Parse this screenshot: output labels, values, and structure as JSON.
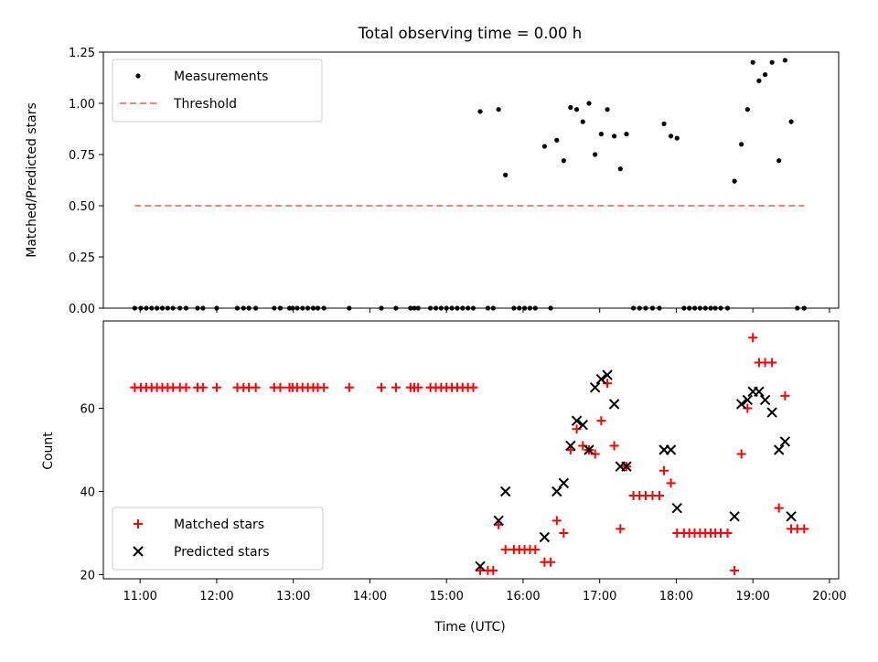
{
  "chart_data": {
    "title": "Total observing time = 0.00 h",
    "xlabel": "Time (UTC)",
    "x_ticks": [
      "11:00",
      "12:00",
      "13:00",
      "14:00",
      "15:00",
      "16:00",
      "17:00",
      "18:00",
      "19:00",
      "20:00"
    ],
    "x_tick_values": [
      11,
      12,
      13,
      14,
      15,
      16,
      17,
      18,
      19,
      20
    ],
    "xlim": [
      10.52,
      20.12
    ],
    "panels": [
      {
        "type": "scatter",
        "ylabel": "Matched/Predicted stars",
        "ylim": [
          0,
          1.25
        ],
        "y_ticks": [
          "0.00",
          "0.25",
          "0.50",
          "0.75",
          "1.00",
          "1.25"
        ],
        "y_tick_values": [
          0,
          0.25,
          0.5,
          0.75,
          1.0,
          1.25
        ],
        "legend": {
          "position": "top-left",
          "entries": [
            "Measurements",
            "Threshold"
          ]
        },
        "series": [
          {
            "name": "Measurements",
            "marker": "dot",
            "color": "#000000",
            "x": [
              10.93,
              11.01,
              11.08,
              11.15,
              11.22,
              11.29,
              11.36,
              11.43,
              11.52,
              11.6,
              11.75,
              11.82,
              12.0,
              12.27,
              12.35,
              12.42,
              12.51,
              12.75,
              12.83,
              12.95,
              12.99,
              13.05,
              13.12,
              13.19,
              13.26,
              13.32,
              13.4,
              13.73,
              14.15,
              14.34,
              14.53,
              14.58,
              14.63,
              14.79,
              14.86,
              14.93,
              15.0,
              15.07,
              15.14,
              15.21,
              15.28,
              15.35,
              15.44,
              15.54,
              15.61,
              15.68,
              15.77,
              15.88,
              15.95,
              16.02,
              16.09,
              16.16,
              16.28,
              16.36,
              16.44,
              16.53,
              16.62,
              16.7,
              16.78,
              16.86,
              16.94,
              17.02,
              17.1,
              17.19,
              17.27,
              17.35,
              17.44,
              17.52,
              17.6,
              17.69,
              17.78,
              17.84,
              17.93,
              18.01,
              18.1,
              18.17,
              18.24,
              18.31,
              18.38,
              18.45,
              18.51,
              18.58,
              18.67,
              18.76,
              18.85,
              18.93,
              19.0,
              19.08,
              19.16,
              19.25,
              19.34,
              19.42,
              19.5,
              19.58,
              19.67
            ],
            "y": [
              0,
              0,
              0,
              0,
              0,
              0,
              0,
              0,
              0,
              0,
              0,
              0,
              0,
              0,
              0,
              0,
              0,
              0,
              0,
              0,
              0,
              0,
              0,
              0,
              0,
              0,
              0,
              0,
              0,
              0,
              0,
              0,
              0,
              0,
              0,
              0,
              0,
              0,
              0,
              0,
              0,
              0,
              0.96,
              0,
              0,
              0.97,
              0.65,
              0,
              0,
              0,
              0,
              0,
              0.79,
              0,
              0.82,
              0.72,
              0.98,
              0.97,
              0.91,
              1.0,
              0.75,
              0.85,
              0.97,
              0.84,
              0.68,
              0.85,
              0,
              0,
              0,
              0,
              0,
              0.9,
              0.84,
              0.83,
              0,
              0,
              0,
              0,
              0,
              0,
              0,
              0,
              0,
              0.62,
              0.8,
              0.97,
              1.2,
              1.11,
              1.14,
              1.2,
              0.72,
              1.21,
              0.91,
              0,
              0
            ]
          },
          {
            "name": "Threshold",
            "type": "line",
            "style": "dashed",
            "color": "#ff7f7f",
            "x": [
              10.93,
              19.67
            ],
            "y": [
              0.5,
              0.5
            ]
          }
        ]
      },
      {
        "type": "scatter",
        "ylabel": "Count",
        "ylim": [
          19,
          81
        ],
        "y_ticks": [
          "20",
          "40",
          "60"
        ],
        "y_tick_values": [
          20,
          40,
          60
        ],
        "legend": {
          "position": "bottom-left",
          "entries": [
            "Matched stars",
            "Predicted stars"
          ]
        },
        "series": [
          {
            "name": "Matched stars",
            "marker": "plus",
            "color": "#ff0000",
            "x": [
              10.93,
              11.01,
              11.08,
              11.15,
              11.22,
              11.29,
              11.36,
              11.43,
              11.52,
              11.6,
              11.75,
              11.82,
              12.0,
              12.27,
              12.35,
              12.42,
              12.51,
              12.75,
              12.83,
              12.95,
              12.99,
              13.05,
              13.12,
              13.19,
              13.26,
              13.32,
              13.4,
              13.73,
              14.15,
              14.34,
              14.53,
              14.58,
              14.63,
              14.79,
              14.86,
              14.93,
              15.0,
              15.07,
              15.14,
              15.21,
              15.28,
              15.35,
              15.44,
              15.54,
              15.61,
              15.68,
              15.77,
              15.88,
              15.95,
              16.02,
              16.09,
              16.16,
              16.28,
              16.36,
              16.44,
              16.53,
              16.62,
              16.7,
              16.78,
              16.86,
              16.94,
              17.02,
              17.1,
              17.19,
              17.27,
              17.35,
              17.44,
              17.52,
              17.6,
              17.69,
              17.78,
              17.84,
              17.93,
              18.01,
              18.1,
              18.17,
              18.24,
              18.31,
              18.38,
              18.45,
              18.51,
              18.58,
              18.67,
              18.76,
              18.85,
              18.93,
              19.0,
              19.08,
              19.16,
              19.25,
              19.34,
              19.42,
              19.5,
              19.58,
              19.67
            ],
            "y": [
              65,
              65,
              65,
              65,
              65,
              65,
              65,
              65,
              65,
              65,
              65,
              65,
              65,
              65,
              65,
              65,
              65,
              65,
              65,
              65,
              65,
              65,
              65,
              65,
              65,
              65,
              65,
              65,
              65,
              65,
              65,
              65,
              65,
              65,
              65,
              65,
              65,
              65,
              65,
              65,
              65,
              65,
              21,
              21,
              21,
              32,
              26,
              26,
              26,
              26,
              26,
              26,
              23,
              23,
              33,
              30,
              50,
              55,
              51,
              50,
              49,
              57,
              66,
              51,
              31,
              46,
              39,
              39,
              39,
              39,
              39,
              45,
              42,
              30,
              30,
              30,
              30,
              30,
              30,
              30,
              30,
              30,
              30,
              21,
              49,
              60,
              77,
              71,
              71,
              71,
              36,
              63,
              31,
              31,
              31
            ]
          },
          {
            "name": "Predicted stars",
            "marker": "x",
            "color": "#000000",
            "x": [
              15.44,
              15.68,
              15.77,
              16.28,
              16.44,
              16.53,
              16.62,
              16.7,
              16.78,
              16.86,
              16.94,
              17.02,
              17.1,
              17.19,
              17.27,
              17.35,
              17.84,
              17.93,
              18.01,
              18.76,
              18.85,
              18.93,
              19.0,
              19.08,
              19.16,
              19.25,
              19.34,
              19.42,
              19.5
            ],
            "y": [
              22,
              33,
              40,
              29,
              40,
              42,
              51,
              57,
              56,
              50,
              65,
              67,
              68,
              61,
              46,
              46,
              50,
              50,
              36,
              34,
              61,
              62,
              64,
              64,
              62,
              59,
              50,
              52,
              34
            ]
          }
        ]
      }
    ]
  }
}
